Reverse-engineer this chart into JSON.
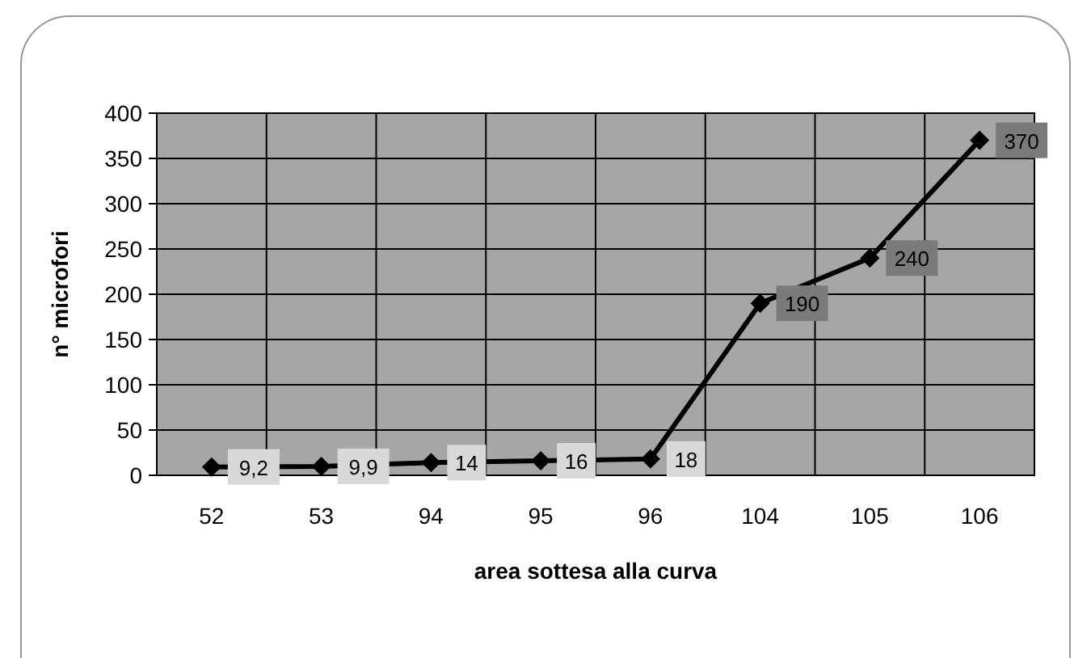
{
  "chart_data": {
    "type": "line",
    "xlabel": "area sottesa alla curva",
    "ylabel": "n° microfori",
    "categories": [
      "52",
      "53",
      "94",
      "95",
      "96",
      "104",
      "105",
      "106"
    ],
    "series": [
      {
        "color": "#000000",
        "values": [
          9.2,
          9.9,
          14,
          16,
          18,
          190,
          240,
          370
        ],
        "value_labels": [
          "9,2",
          "9,9",
          "14",
          "16",
          "18",
          "190",
          "240",
          "370"
        ]
      }
    ],
    "ylim": [
      0,
      400
    ],
    "yticks": [
      0,
      50,
      100,
      150,
      200,
      250,
      300,
      350,
      400
    ],
    "grid": true,
    "marker": "diamond",
    "line_style": "solid"
  }
}
